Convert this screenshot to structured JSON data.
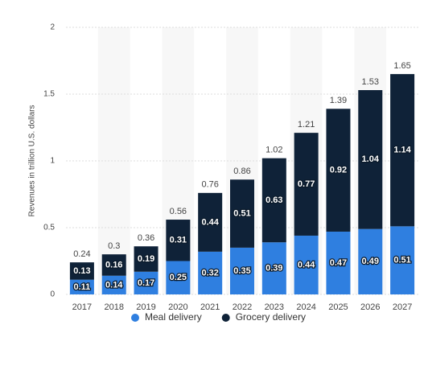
{
  "chart_data": {
    "type": "stacked_bar",
    "y_label": "Revenues in trillion U.S. dollars",
    "categories": [
      "2017",
      "2018",
      "2019",
      "2020",
      "2021",
      "2022",
      "2023",
      "2024",
      "2025",
      "2026",
      "2027"
    ],
    "series": [
      {
        "name": "Meal delivery",
        "color": "#2f7fe0",
        "values": [
          0.11,
          0.14,
          0.17,
          0.25,
          0.32,
          0.35,
          0.39,
          0.44,
          0.47,
          0.49,
          0.51
        ]
      },
      {
        "name": "Grocery delivery",
        "color": "#0f2238",
        "values": [
          0.13,
          0.16,
          0.19,
          0.31,
          0.44,
          0.51,
          0.63,
          0.77,
          0.92,
          1.04,
          1.14
        ]
      }
    ],
    "totals": [
      0.24,
      0.3,
      0.36,
      0.56,
      0.76,
      0.86,
      1.02,
      1.21,
      1.39,
      1.53,
      1.65
    ],
    "ylim": [
      0,
      2
    ],
    "yticks": [
      0,
      0.5,
      1,
      1.5,
      2
    ],
    "grid": true
  }
}
